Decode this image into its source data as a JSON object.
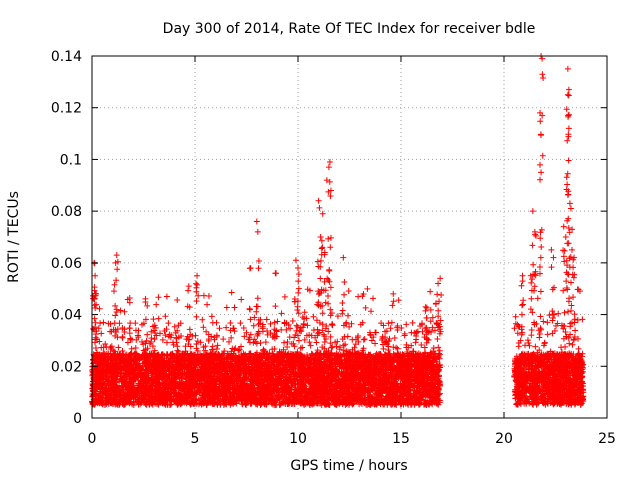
{
  "chart_data": {
    "type": "scatter",
    "title": "Day 300 of 2014, Rate Of TEC Index for receiver bdle",
    "xlabel": "GPS time / hours",
    "ylabel": "ROTI / TECUs",
    "xlim": [
      0,
      25
    ],
    "ylim": [
      0,
      0.14
    ],
    "xticks": [
      0,
      5,
      10,
      15,
      20,
      25
    ],
    "yticks": [
      0,
      0.02,
      0.04,
      0.06,
      0.08,
      0.1,
      0.12,
      0.14
    ],
    "xtick_labels": [
      "0",
      "5",
      "10",
      "15",
      "20",
      "25"
    ],
    "ytick_labels": [
      "0",
      "0.02",
      "0.04",
      "0.06",
      "0.08",
      "0.1",
      "0.12",
      "0.14"
    ],
    "grid": true,
    "legend": "none",
    "marker": "+",
    "color": "#ff0000",
    "series": [
      {
        "name": "ROTI",
        "segments": [
          [
            0,
            16.9
          ],
          [
            20.5,
            23.85
          ]
        ],
        "baseline_range": [
          0.005,
          0.025
        ],
        "spikes": [
          {
            "x": 0.1,
            "y": 0.06
          },
          {
            "x": 0.15,
            "y": 0.055
          },
          {
            "x": 0.2,
            "y": 0.048
          },
          {
            "x": 1.2,
            "y": 0.063
          },
          {
            "x": 1.15,
            "y": 0.06
          },
          {
            "x": 4.7,
            "y": 0.051
          },
          {
            "x": 5.1,
            "y": 0.055
          },
          {
            "x": 8.0,
            "y": 0.076
          },
          {
            "x": 8.05,
            "y": 0.072
          },
          {
            "x": 7.7,
            "y": 0.058
          },
          {
            "x": 8.9,
            "y": 0.056
          },
          {
            "x": 9.9,
            "y": 0.061
          },
          {
            "x": 10.0,
            "y": 0.058
          },
          {
            "x": 11.0,
            "y": 0.084
          },
          {
            "x": 11.2,
            "y": 0.079
          },
          {
            "x": 11.4,
            "y": 0.092
          },
          {
            "x": 11.55,
            "y": 0.099
          },
          {
            "x": 11.5,
            "y": 0.097
          },
          {
            "x": 11.6,
            "y": 0.088
          },
          {
            "x": 11.1,
            "y": 0.07
          },
          {
            "x": 11.3,
            "y": 0.064
          },
          {
            "x": 12.2,
            "y": 0.062
          },
          {
            "x": 16.9,
            "y": 0.054
          },
          {
            "x": 16.8,
            "y": 0.052
          },
          {
            "x": 16.2,
            "y": 0.043
          },
          {
            "x": 20.9,
            "y": 0.055
          },
          {
            "x": 21.3,
            "y": 0.055
          },
          {
            "x": 21.4,
            "y": 0.08
          },
          {
            "x": 21.5,
            "y": 0.072
          },
          {
            "x": 21.8,
            "y": 0.14
          },
          {
            "x": 21.85,
            "y": 0.139
          },
          {
            "x": 21.75,
            "y": 0.118
          },
          {
            "x": 21.8,
            "y": 0.095
          },
          {
            "x": 22.3,
            "y": 0.065
          },
          {
            "x": 22.4,
            "y": 0.062
          },
          {
            "x": 22.9,
            "y": 0.074
          },
          {
            "x": 23.0,
            "y": 0.07
          },
          {
            "x": 23.1,
            "y": 0.135
          },
          {
            "x": 23.15,
            "y": 0.127
          },
          {
            "x": 23.1,
            "y": 0.125
          },
          {
            "x": 23.12,
            "y": 0.117
          },
          {
            "x": 23.15,
            "y": 0.112
          },
          {
            "x": 23.2,
            "y": 0.083
          },
          {
            "x": 23.25,
            "y": 0.081
          },
          {
            "x": 23.3,
            "y": 0.065
          },
          {
            "x": 23.4,
            "y": 0.062
          }
        ]
      }
    ]
  }
}
